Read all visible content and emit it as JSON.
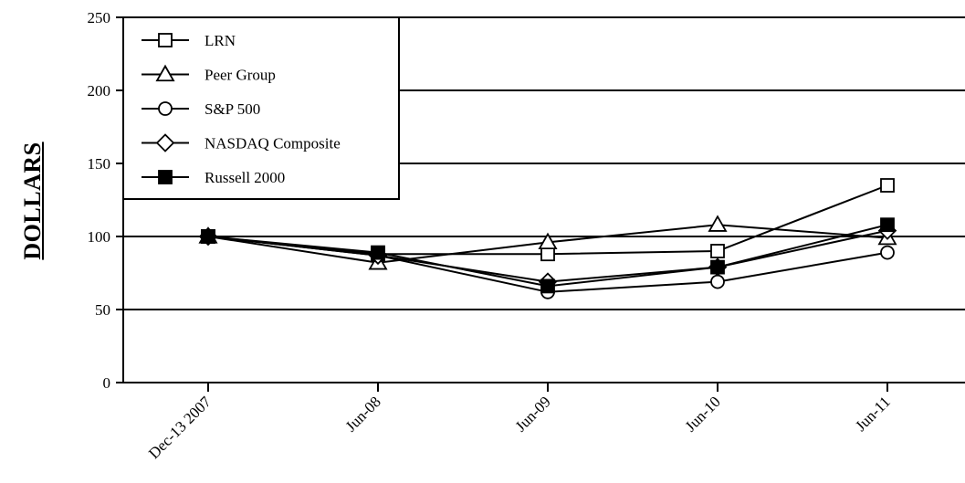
{
  "chart_data": {
    "type": "line",
    "title": "",
    "xlabel": "",
    "ylabel": "DOLLARS",
    "categories": [
      "Dec-13 2007",
      "Jun-08",
      "Jun-09",
      "Jun-10",
      "Jun-11"
    ],
    "ylim": [
      0,
      250
    ],
    "yticks": [
      0,
      50,
      100,
      150,
      200,
      250
    ],
    "grid": "horizontal",
    "legend_position": "top-left",
    "series": [
      {
        "name": "LRN",
        "marker": "square-open",
        "values": [
          100,
          88,
          88,
          90,
          135
        ]
      },
      {
        "name": "Peer Group",
        "marker": "triangle-open",
        "values": [
          100,
          82,
          96,
          108,
          99
        ]
      },
      {
        "name": "S&P 500",
        "marker": "circle-open",
        "values": [
          100,
          87,
          62,
          69,
          89
        ]
      },
      {
        "name": "NASDAQ Composite",
        "marker": "diamond-open",
        "values": [
          100,
          87,
          69,
          79,
          104
        ]
      },
      {
        "name": "Russell 2000",
        "marker": "square-filled",
        "values": [
          100,
          89,
          66,
          79,
          108
        ]
      }
    ]
  }
}
